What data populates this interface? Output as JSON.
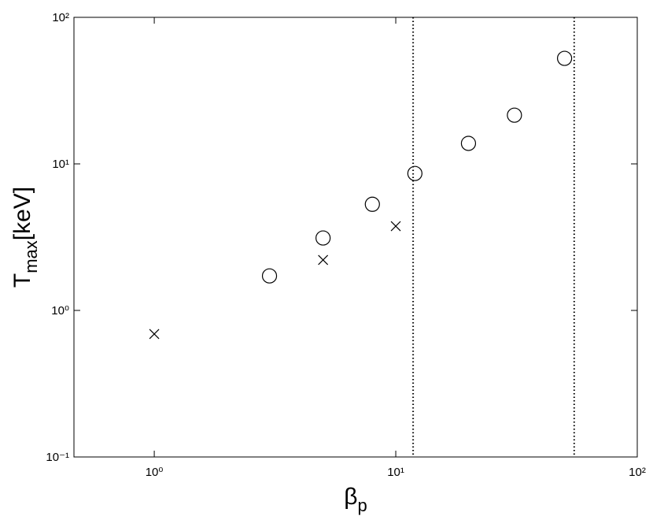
{
  "chart_data": {
    "type": "scatter",
    "xlabel": [
      "β",
      "p"
    ],
    "ylabel": [
      "T",
      "max",
      "[keV]"
    ],
    "xscale": "log",
    "yscale": "log",
    "xlim": [
      0.465,
      100
    ],
    "ylim": [
      0.1,
      100
    ],
    "xticks": [
      {
        "value": 1,
        "label": "10⁰"
      },
      {
        "value": 10,
        "label": "10¹"
      },
      {
        "value": 100,
        "label": "10²"
      }
    ],
    "yticks": [
      {
        "value": 0.1,
        "label": "10⁻¹"
      },
      {
        "value": 1,
        "label": "10⁰"
      },
      {
        "value": 10,
        "label": "10¹"
      },
      {
        "value": 100,
        "label": "10²"
      }
    ],
    "series": [
      {
        "marker": "circle",
        "color": "#000000",
        "x": [
          3,
          5,
          8,
          12,
          20,
          31,
          50
        ],
        "values": [
          1.72,
          3.12,
          5.3,
          8.6,
          13.8,
          21.5,
          52.5
        ]
      },
      {
        "marker": "cross",
        "color": "#000000",
        "x": [
          1,
          5,
          10
        ],
        "values": [
          0.69,
          2.21,
          3.76
        ]
      }
    ],
    "vlines": [
      11.8,
      54.8
    ],
    "vline_style": "dotted"
  }
}
